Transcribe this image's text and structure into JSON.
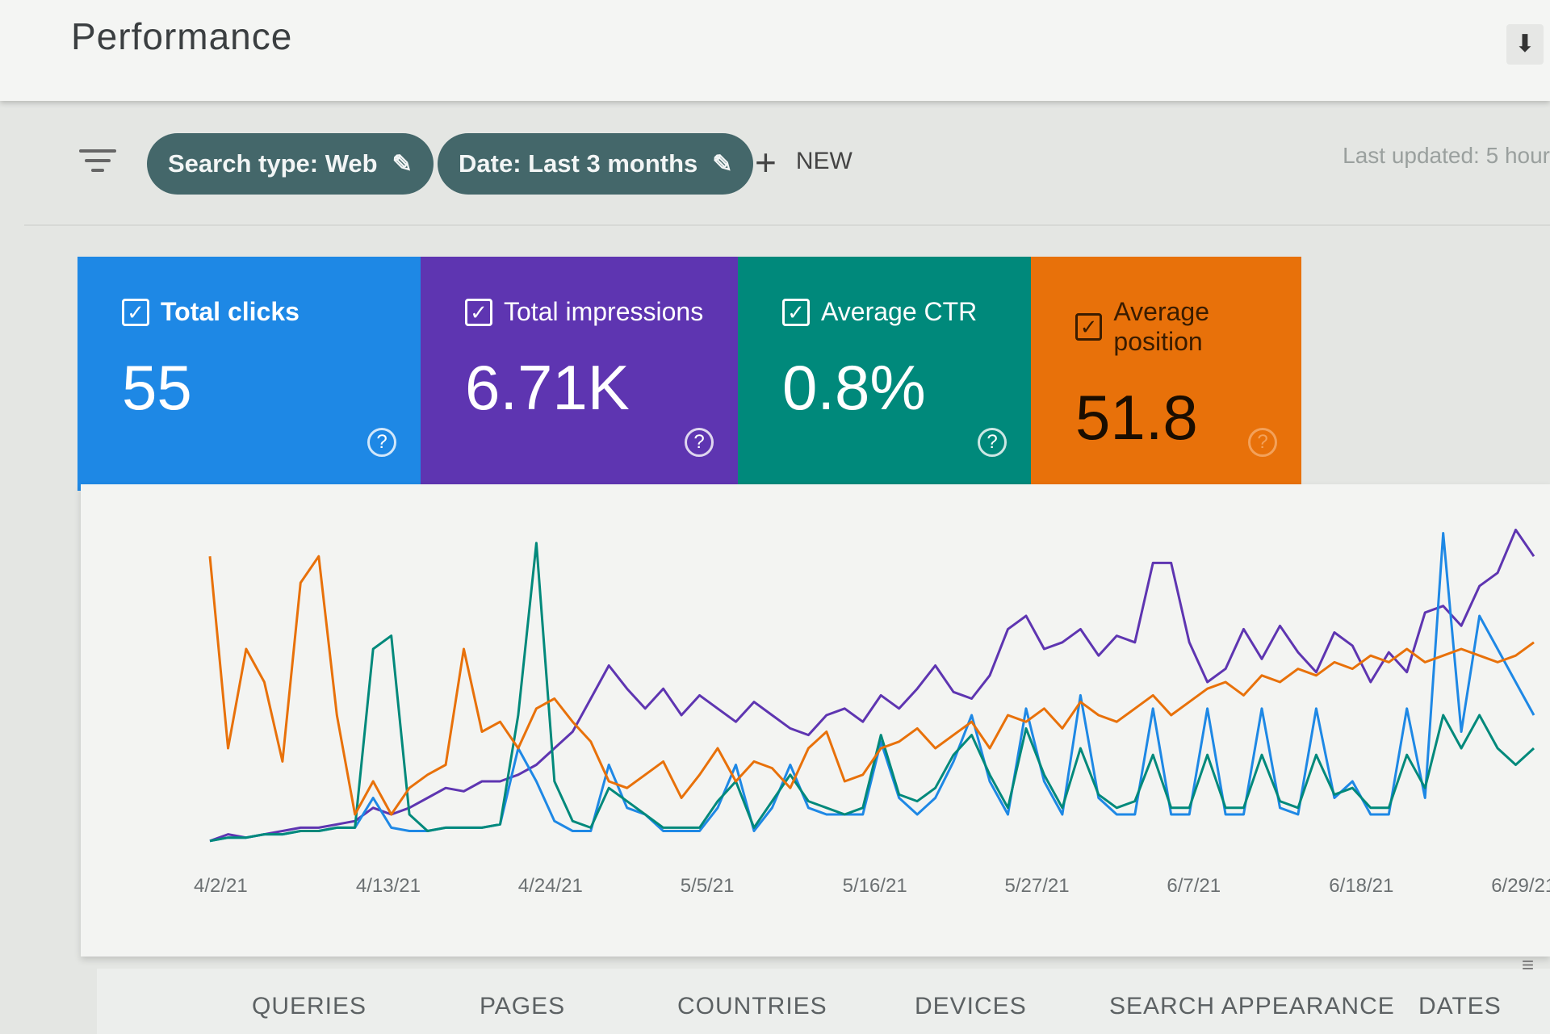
{
  "header": {
    "title": "Performance",
    "download_icon": "download-icon"
  },
  "filters": {
    "filter_icon": "filter-icon",
    "chips": [
      {
        "label": "Search type: Web",
        "icon": "edit-icon"
      },
      {
        "label": "Date: Last 3 months",
        "icon": "edit-icon"
      }
    ],
    "new_label": "NEW",
    "last_updated": "Last updated: 5 hour"
  },
  "metrics": [
    {
      "label": "Total clicks",
      "value": "55",
      "color": "#1e88e5",
      "checked": true
    },
    {
      "label": "Total impressions",
      "value": "6.71K",
      "color": "#5e35b1",
      "checked": true
    },
    {
      "label": "Average CTR",
      "value": "0.8%",
      "color": "#00897b",
      "checked": true
    },
    {
      "label": "Average position",
      "value": "51.8",
      "color": "#e8710a",
      "checked": true
    }
  ],
  "chart_data": {
    "type": "line",
    "x_tick_labels": [
      "4/2/21",
      "4/13/21",
      "4/24/21",
      "5/5/21",
      "5/16/21",
      "5/27/21",
      "6/7/21",
      "6/18/21",
      "6/29/21"
    ],
    "grid": false,
    "series": [
      {
        "metric": "Total impressions",
        "color": "#5e35b1",
        "values": [
          2,
          4,
          3,
          4,
          5,
          6,
          6,
          7,
          8,
          12,
          10,
          12,
          15,
          18,
          17,
          20,
          20,
          22,
          25,
          30,
          35,
          45,
          55,
          48,
          42,
          48,
          40,
          46,
          42,
          38,
          44,
          40,
          36,
          34,
          40,
          42,
          38,
          46,
          42,
          48,
          55,
          47,
          45,
          52,
          66,
          70,
          60,
          62,
          66,
          58,
          64,
          62,
          86,
          86,
          62,
          50,
          54,
          66,
          57,
          67,
          59,
          53,
          65,
          61,
          50,
          59,
          53,
          71,
          73,
          67,
          79,
          83,
          96,
          88
        ]
      },
      {
        "metric": "Total clicks",
        "color": "#1e88e5",
        "values": [
          2,
          3,
          3,
          4,
          4,
          5,
          5,
          6,
          6,
          15,
          6,
          5,
          5,
          6,
          6,
          6,
          7,
          30,
          20,
          8,
          5,
          5,
          25,
          12,
          10,
          5,
          5,
          5,
          12,
          25,
          5,
          12,
          25,
          12,
          10,
          10,
          10,
          32,
          15,
          10,
          15,
          26,
          40,
          20,
          10,
          42,
          20,
          10,
          46,
          15,
          10,
          10,
          42,
          10,
          10,
          42,
          10,
          10,
          42,
          12,
          10,
          42,
          15,
          20,
          10,
          10,
          42,
          15,
          95,
          35,
          70,
          60,
          50,
          40
        ]
      },
      {
        "metric": "Average CTR",
        "color": "#00897b",
        "values": [
          2,
          3,
          3,
          4,
          4,
          5,
          5,
          6,
          6,
          60,
          64,
          10,
          5,
          6,
          6,
          6,
          7,
          40,
          92,
          20,
          8,
          6,
          18,
          14,
          10,
          6,
          6,
          6,
          14,
          20,
          6,
          14,
          22,
          14,
          12,
          10,
          12,
          34,
          16,
          14,
          18,
          28,
          34,
          22,
          12,
          36,
          22,
          12,
          30,
          16,
          12,
          14,
          28,
          12,
          12,
          28,
          12,
          12,
          28,
          14,
          12,
          28,
          16,
          18,
          12,
          12,
          28,
          18,
          40,
          30,
          40,
          30,
          25,
          30
        ]
      },
      {
        "metric": "Average position",
        "color": "#e8710a",
        "values": [
          88,
          30,
          60,
          50,
          26,
          80,
          88,
          40,
          10,
          20,
          10,
          18,
          22,
          25,
          60,
          35,
          38,
          30,
          42,
          45,
          38,
          32,
          20,
          18,
          22,
          26,
          15,
          22,
          30,
          20,
          26,
          24,
          18,
          30,
          35,
          20,
          22,
          30,
          32,
          36,
          30,
          34,
          38,
          30,
          40,
          38,
          42,
          36,
          44,
          40,
          38,
          42,
          46,
          40,
          44,
          48,
          50,
          46,
          52,
          50,
          54,
          52,
          56,
          54,
          58,
          56,
          60,
          56,
          58,
          60,
          58,
          56,
          58,
          62
        ]
      }
    ]
  },
  "tabs": [
    "QUERIES",
    "PAGES",
    "COUNTRIES",
    "DEVICES",
    "SEARCH APPEARANCE",
    "DATES"
  ],
  "tab_filter_icon": "filter-icon"
}
